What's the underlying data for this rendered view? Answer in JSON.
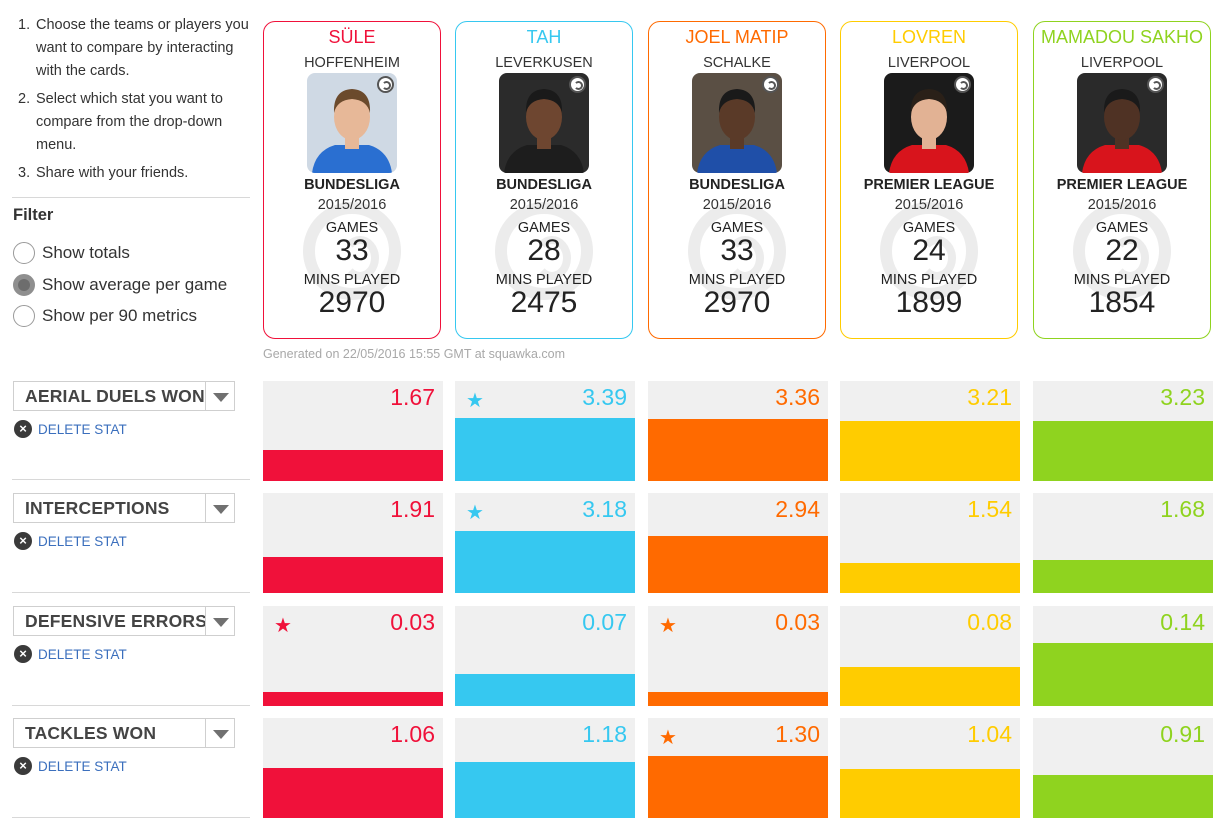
{
  "instructions": [
    {
      "num": "1.",
      "text": "Choose the teams or players you want to compare by interacting with the cards."
    },
    {
      "num": "2.",
      "text": "Select which stat you want to compare from the drop-down menu."
    },
    {
      "num": "3.",
      "text": "Share with your friends."
    }
  ],
  "filter": {
    "title": "Filter",
    "options": [
      {
        "label": "Show totals",
        "checked": false
      },
      {
        "label": "Show average per game",
        "checked": true
      },
      {
        "label": "Show per 90 metrics",
        "checked": false
      }
    ]
  },
  "card_labels": {
    "games": "GAMES",
    "mins": "MINS PLAYED"
  },
  "players": [
    {
      "name": "SÜLE",
      "club": "HOFFENHEIM",
      "league": "BUNDESLIGA",
      "season": "2015/2016",
      "games": "33",
      "mins": "2970",
      "color": "#f0113a",
      "kit": "#2a6fd1",
      "photo_bg": "#cfd9e4",
      "skin": "#e7b898",
      "hair": "#6b4a2c"
    },
    {
      "name": "TAH",
      "club": "LEVERKUSEN",
      "league": "BUNDESLIGA",
      "season": "2015/2016",
      "games": "28",
      "mins": "2475",
      "color": "#36c8f0",
      "kit": "#1d1d1d",
      "photo_bg": "#2b2b2b",
      "skin": "#6e4630",
      "hair": "#1a1a1a"
    },
    {
      "name": "JOEL MATIP",
      "club": "SCHALKE",
      "league": "BUNDESLIGA",
      "season": "2015/2016",
      "games": "33",
      "mins": "2970",
      "color": "#ff6a00",
      "kit": "#1f4fa8",
      "photo_bg": "#5a4f44",
      "skin": "#5a3a28",
      "hair": "#1a1a1a"
    },
    {
      "name": "LOVREN",
      "club": "LIVERPOOL",
      "league": "PREMIER LEAGUE",
      "season": "2015/2016",
      "games": "24",
      "mins": "1899",
      "color": "#ffcc00",
      "kit": "#d8141c",
      "photo_bg": "#1b1b1b",
      "skin": "#e2b294",
      "hair": "#2a2018"
    },
    {
      "name": "MAMADOU SAKHO",
      "club": "LIVERPOOL",
      "league": "PREMIER LEAGUE",
      "season": "2015/2016",
      "games": "22",
      "mins": "1854",
      "color": "#8fd31f",
      "kit": "#d8141c",
      "photo_bg": "#2a2a2a",
      "skin": "#4f3224",
      "hair": "#1a1a1a"
    }
  ],
  "generated": "Generated on 22/05/2016 15:55 GMT at squawka.com",
  "delete_label": "DELETE STAT",
  "stats": [
    {
      "name": "AERIAL DUELS WON",
      "values": [
        "1.67",
        "3.39",
        "3.36",
        "3.21",
        "3.23"
      ],
      "fractions": [
        0.31,
        0.63,
        0.62,
        0.6,
        0.6
      ],
      "stars": [
        false,
        true,
        false,
        false,
        false
      ]
    },
    {
      "name": "INTERCEPTIONS",
      "values": [
        "1.91",
        "3.18",
        "2.94",
        "1.54",
        "1.68"
      ],
      "fractions": [
        0.36,
        0.62,
        0.57,
        0.3,
        0.33
      ],
      "stars": [
        false,
        true,
        false,
        false,
        false
      ]
    },
    {
      "name": "DEFENSIVE ERRORS",
      "values": [
        "0.03",
        "0.07",
        "0.03",
        "0.08",
        "0.14"
      ],
      "fractions": [
        0.14,
        0.32,
        0.14,
        0.39,
        0.63
      ],
      "stars": [
        true,
        false,
        true,
        false,
        false
      ]
    },
    {
      "name": "TACKLES WON",
      "values": [
        "1.06",
        "1.18",
        "1.30",
        "1.04",
        "0.91"
      ],
      "fractions": [
        0.5,
        0.56,
        0.62,
        0.49,
        0.43
      ],
      "stars": [
        false,
        false,
        true,
        false,
        false
      ]
    }
  ],
  "icons": {
    "radio": "radio-button-icon",
    "dropdown": "chevron-down-icon",
    "delete": "close-circle-icon",
    "best": "star-icon",
    "brand": "squawka-logo-icon"
  }
}
